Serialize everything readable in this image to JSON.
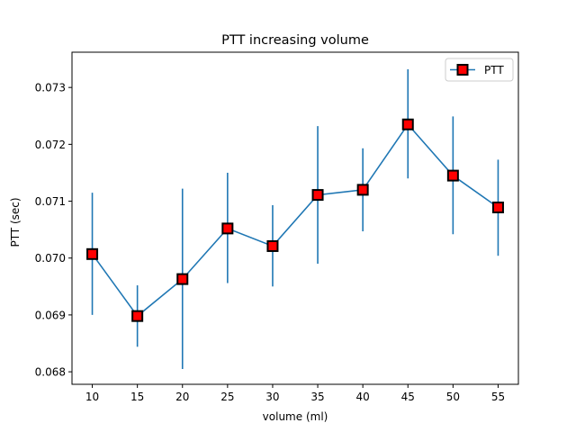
{
  "chart_data": {
    "type": "line",
    "title": "PTT increasing volume",
    "xlabel": "volume (ml)",
    "ylabel": "PTT (sec)",
    "xlim": [
      7.75,
      57.25
    ],
    "ylim": [
      0.06778,
      0.07362
    ],
    "x_ticks": [
      10,
      15,
      20,
      25,
      30,
      35,
      40,
      45,
      50,
      55
    ],
    "y_ticks": [
      0.068,
      0.069,
      0.07,
      0.071,
      0.072,
      0.073
    ],
    "y_tick_labels": [
      "0.068",
      "0.069",
      "0.070",
      "0.071",
      "0.072",
      "0.073"
    ],
    "grid": false,
    "legend_position": "top-right",
    "series": [
      {
        "name": "PTT",
        "line_color": "#1f77b4",
        "marker_face": "#ff0000",
        "marker_edge": "#000000",
        "x": [
          10,
          15,
          20,
          25,
          30,
          35,
          40,
          45,
          50,
          55
        ],
        "y": [
          0.07007,
          0.06898,
          0.06963,
          0.07052,
          0.07021,
          0.07111,
          0.0712,
          0.07235,
          0.07145,
          0.07089
        ],
        "err_low": [
          0.069,
          0.06844,
          0.06805,
          0.06956,
          0.0695,
          0.0699,
          0.07047,
          0.0714,
          0.07042,
          0.07004
        ],
        "err_high": [
          0.07115,
          0.06952,
          0.07122,
          0.0715,
          0.07093,
          0.07232,
          0.07193,
          0.07332,
          0.07249,
          0.07173
        ]
      }
    ]
  }
}
